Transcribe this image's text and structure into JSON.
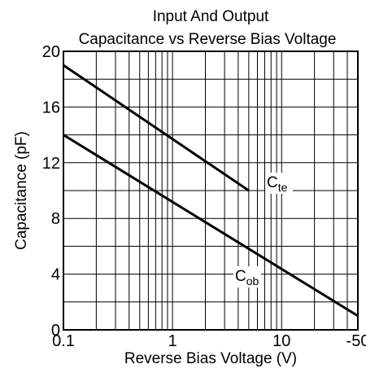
{
  "chart_data": {
    "type": "line",
    "title": [
      "Input And Output",
      "Capacitance vs Reverse Bias Voltage"
    ],
    "x_label": "Reverse Bias Voltage (V)",
    "y_label": "Capacitance (pF)",
    "xlog": true,
    "xlim": [
      0.1,
      50
    ],
    "ylim": [
      0,
      20
    ],
    "xticks": [
      0.1,
      1,
      10,
      {
        "value": 50,
        "label": "-50"
      }
    ],
    "xminorticks": [
      0.2,
      0.3,
      0.4,
      0.5,
      0.6,
      0.7,
      0.8,
      0.9,
      2,
      3,
      4,
      5,
      6,
      7,
      8,
      9,
      20,
      30,
      40
    ],
    "yticks": [
      0,
      4,
      8,
      12,
      16,
      20
    ],
    "yminorticks": [
      2,
      6,
      10,
      14,
      18
    ],
    "grid": true,
    "series": [
      {
        "name": "C",
        "subscript": "te",
        "color": "#000000",
        "x": [
          0.1,
          5
        ],
        "values": [
          19,
          10
        ]
      },
      {
        "name": "C",
        "subscript": "ob",
        "color": "#000000",
        "x": [
          0.1,
          50
        ],
        "values": [
          14,
          1
        ]
      }
    ]
  }
}
